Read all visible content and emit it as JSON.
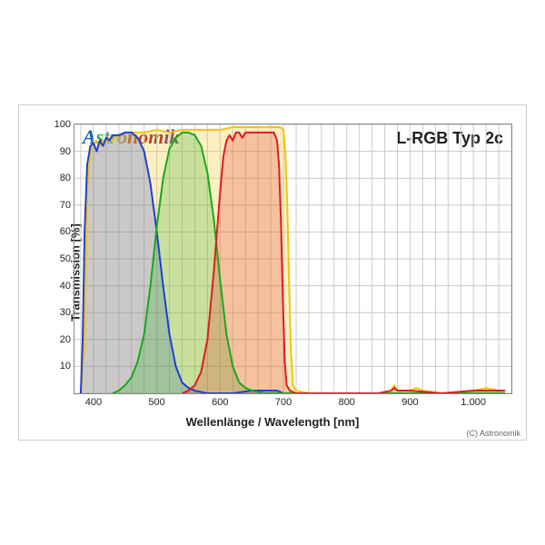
{
  "brand": {
    "text": "Astronomik",
    "colors": [
      "#1a5fb4",
      "#26a269",
      "#26a269",
      "#9fc742",
      "#d4a22f",
      "#e66100",
      "#c01c28",
      "#a51d2d",
      "#613583",
      "#5a3a8e",
      "#1a5fb4"
    ],
    "fontsize": 22
  },
  "title": "L-RGB Typ 2c",
  "ylabel": "Transmission [%]",
  "xlabel": "Wellenlänge / Wavelength [nm]",
  "copyright": "(C) Astronomik",
  "xlim": [
    370,
    1060
  ],
  "ylim": [
    0,
    100
  ],
  "xticks": [
    400,
    500,
    600,
    700,
    800,
    900,
    1000
  ],
  "xtick_labels": [
    "400",
    "500",
    "600",
    "700",
    "800",
    "900",
    "1.000"
  ],
  "xtick_minor_step": 20,
  "yticks": [
    0,
    10,
    20,
    30,
    40,
    50,
    60,
    70,
    80,
    90,
    100
  ],
  "ytick_show_labels": [
    10,
    20,
    30,
    40,
    50,
    60,
    70,
    80,
    90,
    100
  ],
  "grid_color": "#cccccc",
  "background_color": "#ffffff",
  "border_color": "#888888",
  "label_fontsize": 13,
  "tick_fontsize": 11,
  "series": {
    "luminance": {
      "color": "#f5c211",
      "fill_color": "rgba(245, 194, 17, 0.25)",
      "stroke_width": 2,
      "points": [
        [
          380,
          0
        ],
        [
          385,
          15
        ],
        [
          388,
          50
        ],
        [
          390,
          75
        ],
        [
          395,
          90
        ],
        [
          400,
          93
        ],
        [
          405,
          94
        ],
        [
          410,
          92
        ],
        [
          415,
          94
        ],
        [
          420,
          93
        ],
        [
          425,
          95
        ],
        [
          430,
          94
        ],
        [
          440,
          96
        ],
        [
          450,
          97
        ],
        [
          460,
          97
        ],
        [
          480,
          97
        ],
        [
          500,
          98
        ],
        [
          520,
          97
        ],
        [
          540,
          98
        ],
        [
          560,
          98
        ],
        [
          580,
          98
        ],
        [
          600,
          98
        ],
        [
          620,
          99
        ],
        [
          640,
          99
        ],
        [
          660,
          99
        ],
        [
          680,
          99
        ],
        [
          695,
          99
        ],
        [
          700,
          98
        ],
        [
          703,
          90
        ],
        [
          706,
          70
        ],
        [
          709,
          40
        ],
        [
          712,
          15
        ],
        [
          715,
          3
        ],
        [
          720,
          1
        ],
        [
          740,
          0
        ],
        [
          760,
          0
        ],
        [
          800,
          0
        ],
        [
          850,
          0
        ],
        [
          870,
          1
        ],
        [
          875,
          3
        ],
        [
          880,
          1
        ],
        [
          900,
          1
        ],
        [
          910,
          2
        ],
        [
          920,
          1
        ],
        [
          950,
          0
        ],
        [
          1000,
          1
        ],
        [
          1020,
          2
        ],
        [
          1040,
          1
        ],
        [
          1050,
          1
        ]
      ]
    },
    "blue": {
      "color": "#1c3fd7",
      "fill_color": "rgba(28, 63, 215, 0.22)",
      "stroke_width": 2,
      "points": [
        [
          380,
          0
        ],
        [
          383,
          20
        ],
        [
          386,
          60
        ],
        [
          390,
          85
        ],
        [
          395,
          92
        ],
        [
          400,
          93
        ],
        [
          405,
          90
        ],
        [
          410,
          94
        ],
        [
          415,
          92
        ],
        [
          420,
          95
        ],
        [
          425,
          94
        ],
        [
          430,
          96
        ],
        [
          440,
          96
        ],
        [
          450,
          97
        ],
        [
          460,
          97
        ],
        [
          470,
          95
        ],
        [
          480,
          90
        ],
        [
          490,
          78
        ],
        [
          500,
          60
        ],
        [
          510,
          40
        ],
        [
          520,
          22
        ],
        [
          530,
          10
        ],
        [
          540,
          4
        ],
        [
          550,
          2
        ],
        [
          560,
          1
        ],
        [
          580,
          0
        ],
        [
          600,
          0
        ],
        [
          620,
          0
        ],
        [
          650,
          1
        ],
        [
          690,
          1
        ],
        [
          700,
          0
        ],
        [
          720,
          0
        ],
        [
          800,
          0
        ],
        [
          900,
          0
        ],
        [
          1000,
          0
        ],
        [
          1050,
          0
        ]
      ]
    },
    "green": {
      "color": "#18a818",
      "fill_color": "rgba(24, 168, 24, 0.22)",
      "stroke_width": 2,
      "points": [
        [
          430,
          0
        ],
        [
          440,
          1
        ],
        [
          450,
          3
        ],
        [
          460,
          6
        ],
        [
          470,
          12
        ],
        [
          480,
          22
        ],
        [
          490,
          40
        ],
        [
          500,
          62
        ],
        [
          510,
          80
        ],
        [
          520,
          91
        ],
        [
          530,
          95
        ],
        [
          540,
          97
        ],
        [
          550,
          97
        ],
        [
          560,
          96
        ],
        [
          570,
          92
        ],
        [
          580,
          82
        ],
        [
          590,
          65
        ],
        [
          600,
          42
        ],
        [
          610,
          22
        ],
        [
          620,
          10
        ],
        [
          630,
          4
        ],
        [
          640,
          2
        ],
        [
          650,
          1
        ],
        [
          670,
          0
        ],
        [
          700,
          0
        ],
        [
          800,
          0
        ],
        [
          900,
          0
        ],
        [
          1000,
          0
        ],
        [
          1050,
          0
        ]
      ]
    },
    "red": {
      "color": "#e01b1b",
      "fill_color": "rgba(224, 27, 27, 0.22)",
      "stroke_width": 2,
      "points": [
        [
          540,
          0
        ],
        [
          550,
          1
        ],
        [
          560,
          3
        ],
        [
          570,
          8
        ],
        [
          580,
          20
        ],
        [
          590,
          45
        ],
        [
          600,
          75
        ],
        [
          605,
          88
        ],
        [
          610,
          94
        ],
        [
          615,
          96
        ],
        [
          620,
          94
        ],
        [
          625,
          97
        ],
        [
          630,
          97
        ],
        [
          635,
          95
        ],
        [
          640,
          97
        ],
        [
          650,
          97
        ],
        [
          660,
          97
        ],
        [
          670,
          97
        ],
        [
          680,
          97
        ],
        [
          685,
          97
        ],
        [
          690,
          94
        ],
        [
          693,
          85
        ],
        [
          696,
          65
        ],
        [
          699,
          35
        ],
        [
          702,
          12
        ],
        [
          705,
          3
        ],
        [
          710,
          1
        ],
        [
          720,
          0
        ],
        [
          760,
          0
        ],
        [
          800,
          0
        ],
        [
          850,
          0
        ],
        [
          870,
          1
        ],
        [
          875,
          2
        ],
        [
          880,
          1
        ],
        [
          900,
          1
        ],
        [
          950,
          0
        ],
        [
          1000,
          1
        ],
        [
          1050,
          1
        ]
      ]
    }
  }
}
